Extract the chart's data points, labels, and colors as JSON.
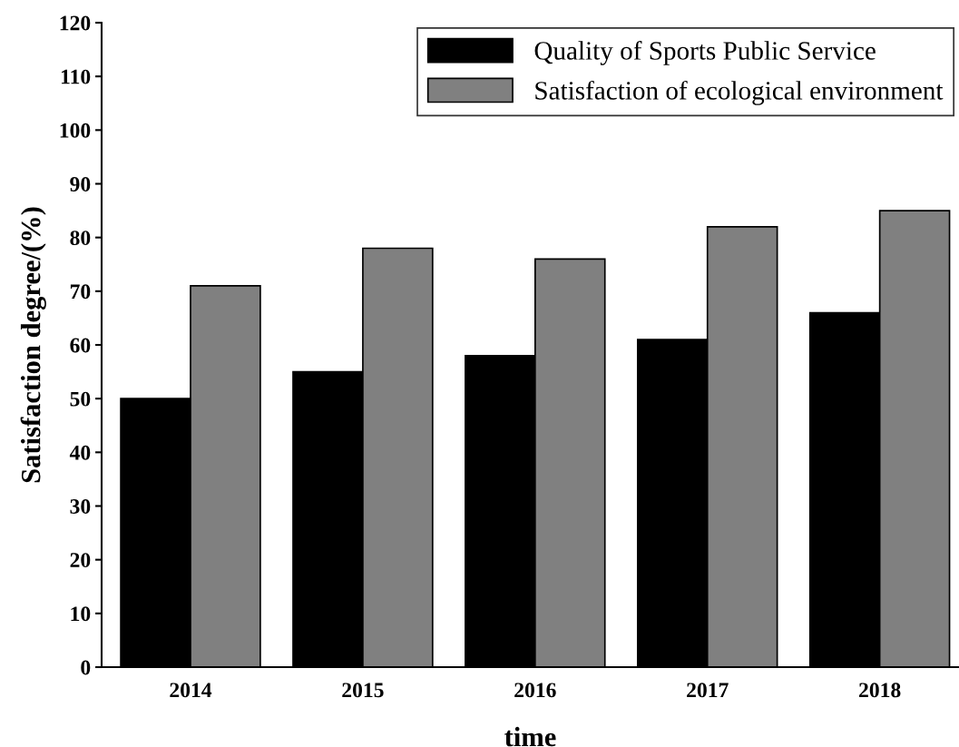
{
  "chart_data": {
    "type": "bar",
    "xlabel": "time",
    "ylabel": "Satisfaction degree/(%)",
    "categories": [
      "2014",
      "2015",
      "2016",
      "2017",
      "2018"
    ],
    "series": [
      {
        "name": "Quality of Sports Public Service",
        "color": "#000000",
        "values": [
          50,
          55,
          58,
          61,
          66
        ]
      },
      {
        "name": "Satisfaction of ecological environment",
        "color": "#808080",
        "values": [
          71,
          78,
          76,
          82,
          85
        ]
      }
    ],
    "ylim": [
      0,
      120
    ],
    "yticks": [
      0,
      10,
      20,
      30,
      40,
      50,
      60,
      70,
      80,
      90,
      100,
      110,
      120
    ],
    "grid": false,
    "legend": "top right"
  }
}
